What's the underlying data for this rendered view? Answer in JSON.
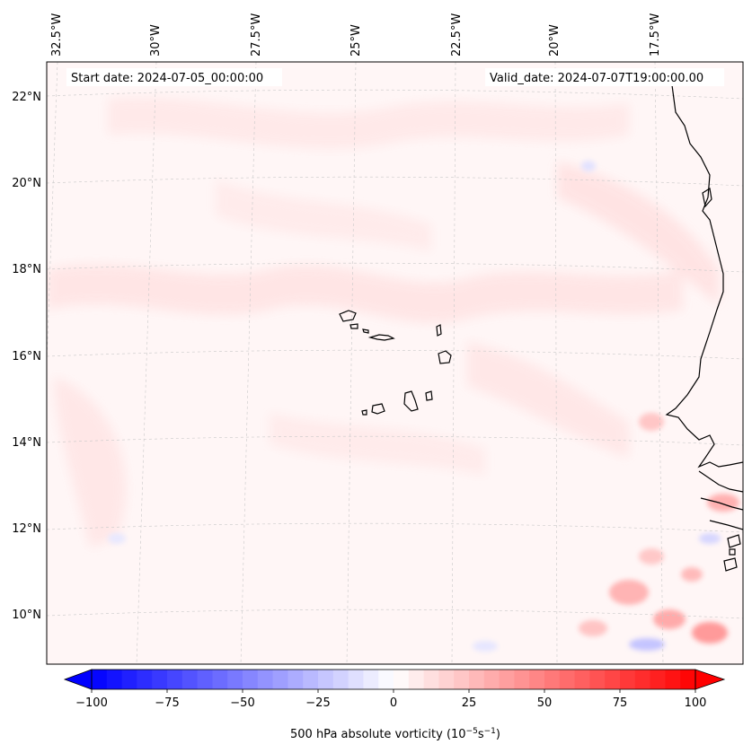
{
  "map": {
    "start_date": "Start date: 2024-07-05_00:00:00",
    "valid_date": "Valid_date: 2024-07-07T19:00:00.00",
    "lon_labels": [
      "32.5°W",
      "30°W",
      "27.5°W",
      "25°W",
      "22.5°W",
      "20°W",
      "17.5°W"
    ],
    "lat_labels": [
      "22°N",
      "20°N",
      "18°N",
      "16°N",
      "14°N",
      "12°N",
      "10°N"
    ]
  },
  "colorbar": {
    "label": "500 hPa absolute vorticity (10",
    "label_exp": "−5",
    "label_unit": "s",
    "label_exp2": "−1",
    "label_close": ")",
    "ticks": [
      "−100",
      "−75",
      "−50",
      "−25",
      "0",
      "25",
      "50",
      "75",
      "100"
    ],
    "min": -100,
    "max": 100,
    "neg_color": "#0000ff",
    "pos_color": "#ff0000"
  }
}
